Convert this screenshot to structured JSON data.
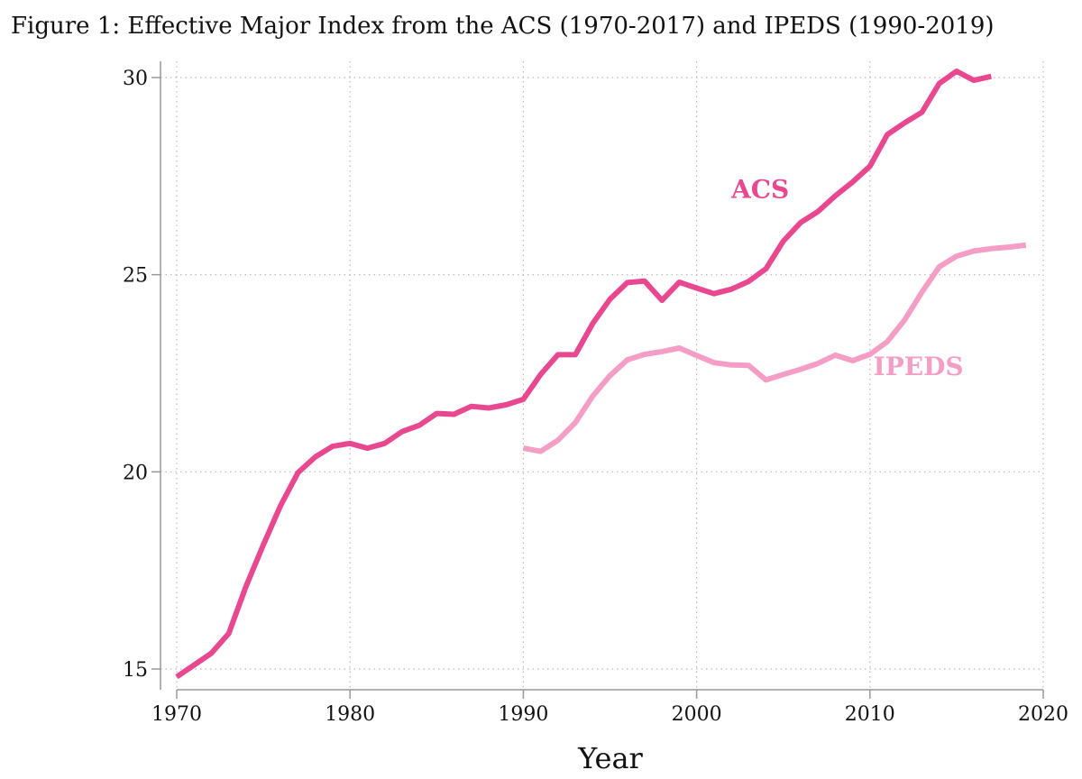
{
  "chart_data": {
    "type": "line",
    "title": "Figure 1: Effective Major Index from the ACS (1970-2017) and IPEDS (1990-2019)",
    "xlabel": "Year",
    "ylabel": "",
    "xlim": [
      1970,
      2020
    ],
    "ylim": [
      15,
      30
    ],
    "xticks": [
      1970,
      1980,
      1990,
      2000,
      2010,
      2020
    ],
    "yticks": [
      15,
      20,
      25,
      30
    ],
    "grid": true,
    "legend": "none",
    "series": [
      {
        "name": "ACS",
        "color": "#e8488f",
        "x": [
          1970,
          1971,
          1972,
          1973,
          1974,
          1975,
          1976,
          1977,
          1978,
          1979,
          1980,
          1981,
          1982,
          1983,
          1984,
          1985,
          1986,
          1987,
          1988,
          1989,
          1990,
          1991,
          1992,
          1993,
          1994,
          1995,
          1996,
          1997,
          1998,
          1999,
          2000,
          2001,
          2002,
          2003,
          2004,
          2005,
          2006,
          2007,
          2008,
          2009,
          2010,
          2011,
          2012,
          2013,
          2014,
          2015,
          2016,
          2017
        ],
        "y": [
          14.8,
          15.1,
          15.4,
          15.9,
          17.1,
          18.15,
          19.15,
          19.98,
          20.38,
          20.65,
          20.72,
          20.6,
          20.72,
          21.02,
          21.18,
          21.48,
          21.46,
          21.66,
          21.62,
          21.7,
          21.84,
          22.47,
          22.97,
          22.97,
          23.76,
          24.38,
          24.8,
          24.84,
          24.35,
          24.81,
          24.66,
          24.52,
          24.63,
          24.83,
          25.15,
          25.85,
          26.32,
          26.6,
          27.0,
          27.35,
          27.75,
          28.55,
          28.85,
          29.12,
          29.85,
          30.16,
          29.93,
          30.03
        ]
      },
      {
        "name": "IPEDS",
        "color": "#f49ec6",
        "x": [
          1990,
          1991,
          1992,
          1993,
          1994,
          1995,
          1996,
          1997,
          1998,
          1999,
          2000,
          2001,
          2002,
          2003,
          2004,
          2005,
          2006,
          2007,
          2008,
          2009,
          2010,
          2011,
          2012,
          2013,
          2014,
          2015,
          2016,
          2017,
          2018,
          2019
        ],
        "y": [
          20.6,
          20.52,
          20.8,
          21.25,
          21.92,
          22.44,
          22.84,
          22.98,
          23.05,
          23.14,
          22.95,
          22.77,
          22.71,
          22.7,
          22.33,
          22.47,
          22.6,
          22.75,
          22.96,
          22.82,
          22.98,
          23.3,
          23.85,
          24.56,
          25.2,
          25.47,
          25.6,
          25.66,
          25.7,
          25.75
        ]
      }
    ],
    "annotations": [
      {
        "text": "ACS",
        "x": 2002.0,
        "y": 26.95,
        "color": "#e8488f"
      },
      {
        "text": "IPEDS",
        "x": 2010.2,
        "y": 22.45,
        "color": "#f49ec6"
      }
    ]
  },
  "style": {
    "grid_color": "#b8b8b8",
    "axis_color": "#999999",
    "text_color": "#111111"
  }
}
